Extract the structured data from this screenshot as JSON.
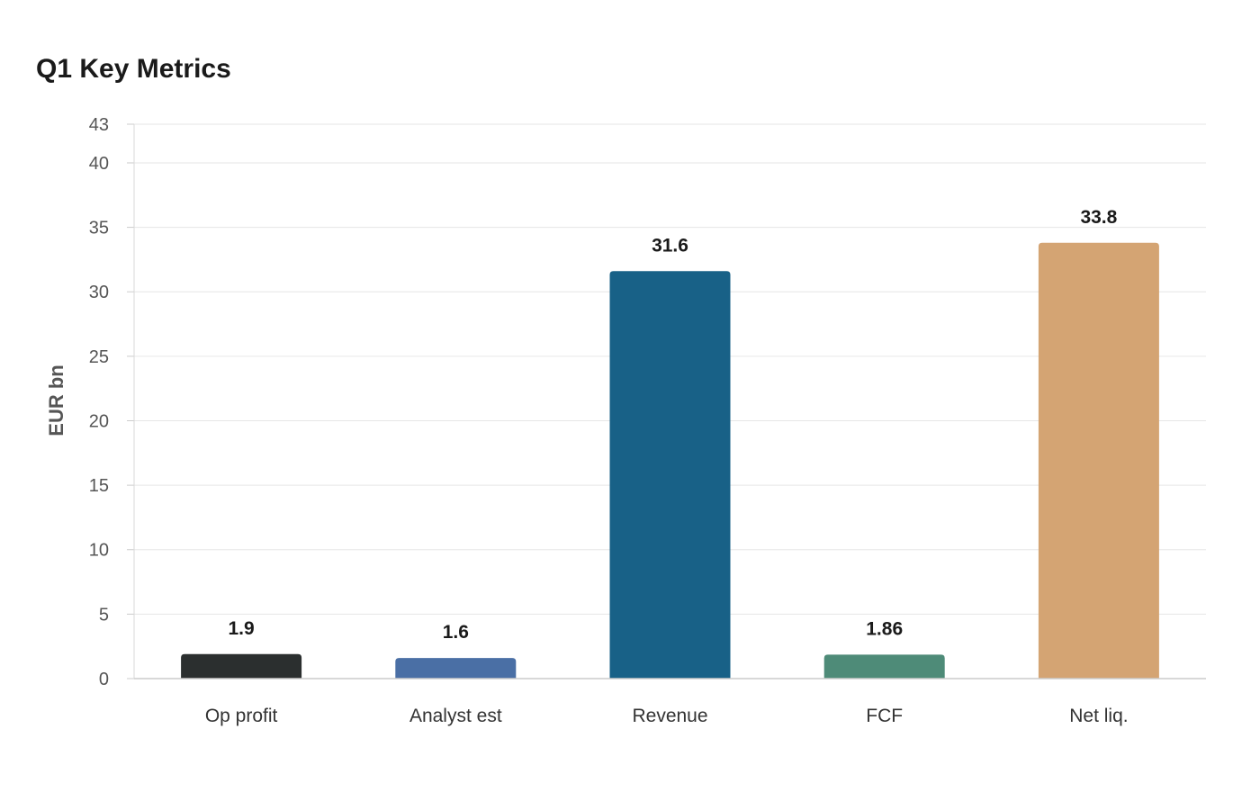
{
  "chart_data": {
    "type": "bar",
    "title": "Q1 Key Metrics",
    "xlabel": "",
    "ylabel": "EUR bn",
    "categories": [
      "Op profit",
      "Analyst est",
      "Revenue",
      "FCF",
      "Net liq."
    ],
    "values": [
      1.9,
      1.6,
      31.6,
      1.86,
      33.8
    ],
    "value_labels": [
      "1.9",
      "1.6",
      "31.6",
      "1.86",
      "33.8"
    ],
    "colors": [
      "#2b2f2f",
      "#4a6fa5",
      "#186187",
      "#4e8b78",
      "#d4a473"
    ],
    "ylim": [
      0,
      43
    ],
    "yticks": [
      0,
      5,
      10,
      15,
      20,
      25,
      30,
      35,
      40,
      43
    ],
    "grid": true,
    "legend": "none"
  }
}
